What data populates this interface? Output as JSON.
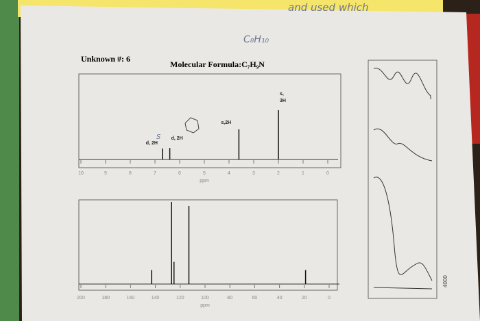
{
  "handwriting": {
    "top_note": "and used which",
    "formula_note": "C₈H₁₀",
    "margin_mark": "S"
  },
  "header": {
    "unknown": "Unknown #: 6",
    "formula": "Molecular Formula:C₇H₉N"
  },
  "h_nmr": {
    "xlim": [
      10,
      0
    ],
    "xticks": [
      10,
      9,
      8,
      7,
      6,
      5,
      4,
      3,
      2,
      1,
      0
    ],
    "x_label": "ppm",
    "peaks": [
      {
        "shift": 6.7,
        "height": 0.2,
        "label": [
          "d, 2H"
        ]
      },
      {
        "shift": 6.4,
        "height": 0.21,
        "label": [
          "d, 2H"
        ]
      },
      {
        "shift": 3.6,
        "height": 0.55,
        "label": [
          "s,2H"
        ]
      },
      {
        "shift": 2.0,
        "height": 0.9,
        "label": [
          "s,",
          "3H"
        ]
      }
    ]
  },
  "c_nmr": {
    "xlim": [
      200,
      0
    ],
    "xticks": [
      200,
      180,
      160,
      140,
      120,
      100,
      80,
      60,
      40,
      20,
      0
    ],
    "x_label": "ppm",
    "peaks": [
      {
        "shift": 143,
        "height": 0.17
      },
      {
        "shift": 127,
        "height": 1.0
      },
      {
        "shift": 125,
        "height": 0.27
      },
      {
        "shift": 113,
        "height": 0.95
      },
      {
        "shift": 19,
        "height": 0.17
      }
    ]
  },
  "ir": {
    "x_tick": "4000"
  }
}
